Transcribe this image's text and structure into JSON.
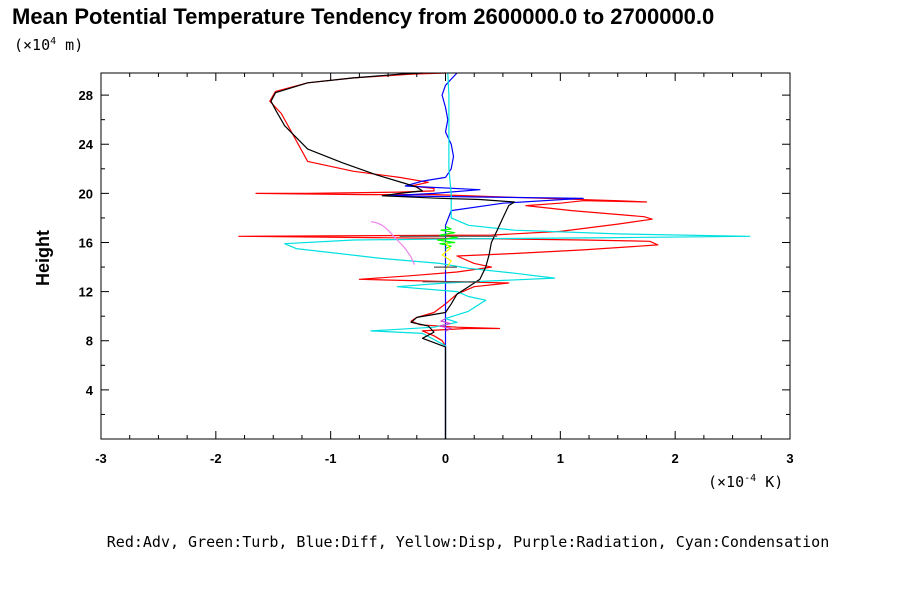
{
  "chart_data": {
    "type": "line",
    "title": "Mean Potential Temperature Tendency from 2600000.0 to 2700000.0",
    "y_unit": {
      "prefix": "(×10",
      "exp": "4",
      "suffix": " m)"
    },
    "x_unit": {
      "prefix": "(×10",
      "exp": "-4",
      "suffix": " K)"
    },
    "ylabel": "Height",
    "xlabel": "",
    "xlim": [
      -3,
      3
    ],
    "ylim": [
      0,
      29.8
    ],
    "x_ticks": [
      -3,
      -2,
      -1,
      0,
      1,
      2,
      3
    ],
    "x_tick_labels": [
      "-3",
      "-2",
      "-1",
      "0",
      "1",
      "2",
      "3"
    ],
    "y_ticks": [
      4,
      8,
      12,
      16,
      20,
      24,
      28
    ],
    "y_tick_labels": [
      "4",
      "8",
      "12",
      "16",
      "20",
      "24",
      "28"
    ],
    "legend_text": "Red:Adv, Green:Turb, Blue:Diff, Yellow:Disp, Purple:Radiation, Cyan:Condensation",
    "series": [
      {
        "key": "red",
        "color": "#ff0000",
        "points": [
          [
            0.0,
            0.0
          ],
          [
            0.0,
            7.6
          ],
          [
            -0.03,
            8.0
          ],
          [
            -0.1,
            8.4
          ],
          [
            -0.2,
            8.8
          ],
          [
            0.18,
            9.0
          ],
          [
            0.47,
            9.0
          ],
          [
            0.1,
            9.1
          ],
          [
            -0.22,
            9.3
          ],
          [
            -0.3,
            9.6
          ],
          [
            -0.25,
            9.9
          ],
          [
            -0.1,
            10.3
          ],
          [
            0.0,
            11.0
          ],
          [
            0.1,
            11.8
          ],
          [
            0.25,
            12.4
          ],
          [
            0.55,
            12.7
          ],
          [
            0.1,
            12.8
          ],
          [
            -0.3,
            12.9
          ],
          [
            -0.75,
            13.0
          ],
          [
            -0.3,
            13.3
          ],
          [
            0.1,
            13.6
          ],
          [
            0.4,
            14.0
          ],
          [
            0.25,
            14.3
          ],
          [
            0.1,
            14.9
          ],
          [
            0.6,
            15.1
          ],
          [
            1.2,
            15.4
          ],
          [
            1.85,
            15.8
          ],
          [
            1.78,
            16.1
          ],
          [
            1.2,
            16.2
          ],
          [
            0.4,
            16.3
          ],
          [
            -1.8,
            16.5
          ],
          [
            0.4,
            16.6
          ],
          [
            1.0,
            16.9
          ],
          [
            1.5,
            17.5
          ],
          [
            1.8,
            17.9
          ],
          [
            1.73,
            18.1
          ],
          [
            1.1,
            18.6
          ],
          [
            0.7,
            19.0
          ],
          [
            1.0,
            19.2
          ],
          [
            1.2,
            19.4
          ],
          [
            1.75,
            19.3
          ],
          [
            1.5,
            19.4
          ],
          [
            0.5,
            19.7
          ],
          [
            -0.1,
            19.9
          ],
          [
            -0.7,
            19.9
          ],
          [
            -1.65,
            20.0
          ],
          [
            -1.2,
            20.0
          ],
          [
            -0.4,
            20.1
          ],
          [
            -0.1,
            20.2
          ],
          [
            -0.1,
            20.4
          ],
          [
            -0.3,
            20.6
          ],
          [
            -0.15,
            20.9
          ],
          [
            -0.4,
            21.3
          ],
          [
            -0.8,
            21.8
          ],
          [
            -1.2,
            22.6
          ],
          [
            -1.43,
            26.5
          ],
          [
            -1.53,
            27.5
          ],
          [
            -1.48,
            28.3
          ],
          [
            -1.2,
            29.0
          ],
          [
            -0.8,
            29.4
          ],
          [
            -0.3,
            29.7
          ],
          [
            0.0,
            29.8
          ]
        ]
      },
      {
        "key": "blue",
        "color": "#0000ff",
        "points": [
          [
            0.0,
            0.0
          ],
          [
            0.0,
            9.0
          ],
          [
            0.0,
            17.4
          ],
          [
            0.05,
            18.6
          ],
          [
            0.5,
            19.2
          ],
          [
            1.2,
            19.6
          ],
          [
            0.3,
            19.7
          ],
          [
            -0.5,
            19.8
          ],
          [
            -0.1,
            20.0
          ],
          [
            0.3,
            20.3
          ],
          [
            -0.35,
            20.6
          ],
          [
            -0.2,
            21.0
          ],
          [
            0.0,
            21.3
          ],
          [
            0.05,
            22.0
          ],
          [
            0.07,
            23.0
          ],
          [
            0.05,
            24.0
          ],
          [
            0.0,
            25.0
          ],
          [
            0.02,
            26.0
          ],
          [
            0.0,
            27.0
          ],
          [
            -0.03,
            28.0
          ],
          [
            0.0,
            28.8
          ],
          [
            0.05,
            29.3
          ],
          [
            0.1,
            29.8
          ]
        ]
      },
      {
        "key": "cyan",
        "color": "#00e0e0",
        "points": [
          [
            0.0,
            0.0
          ],
          [
            0.0,
            7.6
          ],
          [
            -0.2,
            8.6
          ],
          [
            -0.65,
            8.8
          ],
          [
            -0.1,
            9.1
          ],
          [
            0.1,
            9.5
          ],
          [
            0.0,
            9.8
          ],
          [
            0.2,
            10.4
          ],
          [
            0.3,
            11.0
          ],
          [
            0.35,
            11.3
          ],
          [
            0.2,
            11.6
          ],
          [
            0.1,
            12.0
          ],
          [
            -0.42,
            12.4
          ],
          [
            0.0,
            12.7
          ],
          [
            0.95,
            13.1
          ],
          [
            0.6,
            13.5
          ],
          [
            0.2,
            13.9
          ],
          [
            -0.05,
            14.3
          ],
          [
            -0.55,
            14.7
          ],
          [
            -1.3,
            15.5
          ],
          [
            -1.4,
            15.9
          ],
          [
            -0.8,
            16.2
          ],
          [
            0.2,
            16.3
          ],
          [
            1.5,
            16.4
          ],
          [
            2.65,
            16.5
          ],
          [
            1.5,
            16.7
          ],
          [
            0.6,
            17.0
          ],
          [
            0.2,
            17.4
          ],
          [
            0.05,
            18.0
          ],
          [
            0.05,
            19.0
          ],
          [
            0.05,
            20.0
          ],
          [
            0.03,
            22.0
          ],
          [
            0.03,
            25.0
          ],
          [
            0.03,
            28.0
          ],
          [
            0.02,
            29.8
          ]
        ]
      },
      {
        "key": "purple",
        "color": "#ee82ee",
        "points": [
          [
            -0.27,
            14.2
          ],
          [
            -0.3,
            14.8
          ],
          [
            -0.35,
            15.5
          ],
          [
            -0.4,
            16.0
          ],
          [
            -0.45,
            16.5
          ],
          [
            -0.5,
            17.0
          ],
          [
            -0.55,
            17.4
          ],
          [
            -0.6,
            17.6
          ],
          [
            -0.65,
            17.7
          ]
        ]
      },
      {
        "key": "green",
        "color": "#00ff00",
        "points": [
          [
            0.0,
            15.5
          ],
          [
            0.05,
            15.7
          ],
          [
            -0.05,
            15.9
          ],
          [
            0.08,
            16.0
          ],
          [
            -0.07,
            16.2
          ],
          [
            0.1,
            16.4
          ],
          [
            -0.05,
            16.6
          ],
          [
            0.08,
            16.8
          ],
          [
            -0.04,
            17.0
          ],
          [
            0.05,
            17.1
          ],
          [
            0.0,
            17.3
          ]
        ]
      },
      {
        "key": "yellow",
        "color": "#ffff00",
        "points": [
          [
            0.0,
            13.8
          ],
          [
            0.05,
            14.5
          ],
          [
            -0.03,
            15.0
          ],
          [
            0.04,
            15.5
          ],
          [
            0.0,
            16.0
          ]
        ]
      },
      {
        "key": "purple2",
        "color": "#cc44cc",
        "points": [
          [
            0.0,
            8.8
          ],
          [
            0.05,
            9.0
          ],
          [
            -0.05,
            9.2
          ],
          [
            0.04,
            9.4
          ],
          [
            -0.04,
            9.6
          ],
          [
            0.0,
            9.8
          ]
        ]
      },
      {
        "key": "black",
        "color": "#000000",
        "points": [
          [
            0.0,
            0.0
          ],
          [
            0.0,
            7.5
          ],
          [
            -0.2,
            8.2
          ],
          [
            -0.1,
            8.7
          ],
          [
            -0.15,
            9.2
          ],
          [
            -0.3,
            9.5
          ],
          [
            -0.25,
            9.9
          ],
          [
            0.0,
            10.3
          ],
          [
            0.05,
            11.0
          ],
          [
            0.1,
            11.8
          ],
          [
            0.2,
            12.4
          ],
          [
            0.3,
            13.0
          ],
          [
            0.35,
            14.0
          ],
          [
            0.38,
            15.0
          ],
          [
            0.4,
            16.0
          ],
          [
            0.45,
            17.0
          ],
          [
            0.5,
            18.0
          ],
          [
            0.55,
            19.0
          ],
          [
            0.6,
            19.3
          ],
          [
            0.3,
            19.5
          ],
          [
            -0.05,
            19.6
          ],
          [
            -0.55,
            19.8
          ],
          [
            -0.4,
            20.0
          ],
          [
            -0.2,
            20.2
          ],
          [
            -0.25,
            20.5
          ],
          [
            -0.35,
            20.8
          ],
          [
            -0.6,
            21.5
          ],
          [
            -0.9,
            22.5
          ],
          [
            -1.2,
            23.6
          ],
          [
            -1.4,
            25.5
          ],
          [
            -1.48,
            26.8
          ],
          [
            -1.52,
            27.5
          ],
          [
            -1.48,
            28.2
          ],
          [
            -1.2,
            29.0
          ],
          [
            -0.8,
            29.4
          ],
          [
            -0.4,
            29.7
          ],
          [
            -0.2,
            29.8
          ]
        ]
      },
      {
        "key": "gray-h1",
        "color": "#555555",
        "points": [
          [
            -0.4,
            16.5
          ],
          [
            0.45,
            16.5
          ]
        ]
      },
      {
        "key": "gray-h2",
        "color": "#555555",
        "points": [
          [
            -0.2,
            12.8
          ],
          [
            0.3,
            12.8
          ]
        ]
      },
      {
        "key": "gray-h3",
        "color": "#555555",
        "points": [
          [
            -0.1,
            14.0
          ],
          [
            0.1,
            14.0
          ]
        ]
      }
    ]
  }
}
